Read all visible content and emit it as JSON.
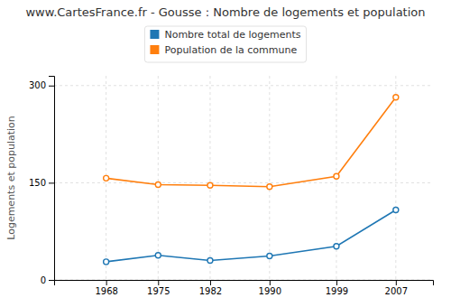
{
  "chart_data": {
    "type": "line",
    "title": "www.CartesFrance.fr - Gousse : Nombre de logements et population",
    "ylabel": "Logements et population",
    "x": [
      1968,
      1975,
      1982,
      1990,
      1999,
      2007
    ],
    "series": [
      {
        "name": "Nombre total de logements",
        "values": [
          28,
          38,
          30,
          37,
          52,
          108
        ]
      },
      {
        "name": "Population de la commune",
        "values": [
          157,
          147,
          146,
          144,
          160,
          282
        ]
      }
    ],
    "xlim": [
      1961,
      2012
    ],
    "xticks": [
      1968,
      1975,
      1982,
      1990,
      1999,
      2007
    ],
    "ylim": [
      0,
      315
    ],
    "yticks": [
      0,
      150,
      300
    ],
    "grid": true,
    "legend": "top",
    "marker": "circle"
  }
}
